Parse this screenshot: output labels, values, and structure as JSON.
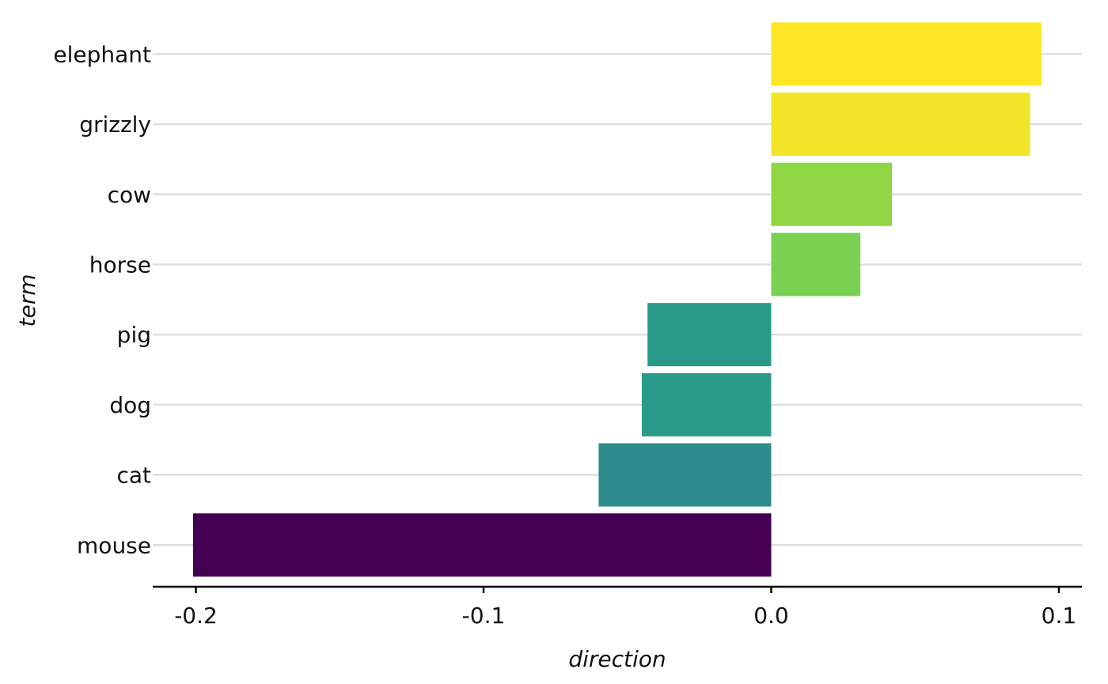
{
  "chart_data": {
    "type": "bar",
    "orientation": "horizontal",
    "xlabel": "direction",
    "ylabel": "term",
    "xlim": [
      -0.215,
      0.108
    ],
    "x_ticks": [
      -0.2,
      -0.1,
      0.0,
      0.1
    ],
    "x_tick_labels": [
      "-0.2",
      "-0.1",
      "0.0",
      "0.1"
    ],
    "grid": "horizontal major lines only",
    "legend": "none",
    "categories": [
      "elephant",
      "grizzly",
      "cow",
      "horse",
      "pig",
      "dog",
      "cat",
      "mouse"
    ],
    "values": [
      0.094,
      0.09,
      0.042,
      0.031,
      -0.043,
      -0.045,
      -0.06,
      -0.201
    ],
    "colors": [
      "#fde725",
      "#f2e527",
      "#8fd744",
      "#7ad151",
      "#2a9a88",
      "#2b9a8a",
      "#2e8b8b",
      "#440154"
    ]
  }
}
